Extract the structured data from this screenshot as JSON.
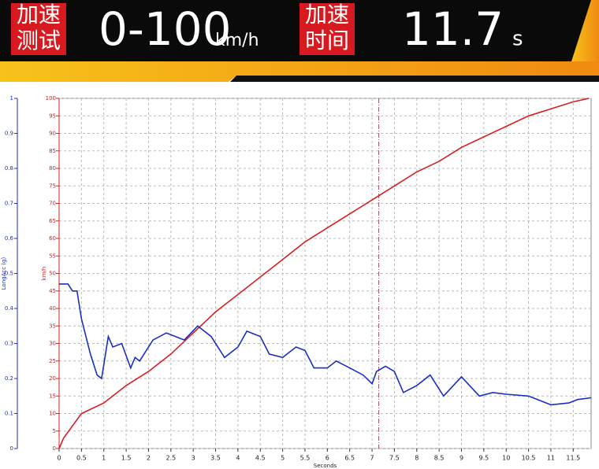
{
  "header": {
    "badge1": [
      "加速",
      "测试"
    ],
    "title": "0-100",
    "unit": "km/h",
    "badge2": [
      "加速",
      "时间"
    ],
    "result": "11.7",
    "result_unit": "s"
  },
  "chart_data": {
    "type": "line",
    "xlabel": "Seconds",
    "ylabel": "km/h",
    "y2label": "LongAcc (g)",
    "xlim": [
      0,
      11.9
    ],
    "xticks": [
      0,
      0.5,
      1,
      1.5,
      2,
      2.5,
      3,
      3.5,
      4,
      4.5,
      5,
      5.5,
      6,
      6.5,
      7,
      7.5,
      8,
      8.5,
      9,
      9.5,
      10,
      10.5,
      11,
      11.5
    ],
    "ylim": [
      0,
      100
    ],
    "yticks": [
      0,
      5,
      10,
      15,
      20,
      25,
      30,
      35,
      40,
      45,
      50,
      55,
      60,
      65,
      70,
      75,
      80,
      85,
      90,
      95,
      100
    ],
    "y2lim": [
      0,
      1
    ],
    "y2ticks": [
      0,
      0.1,
      0.2,
      0.3,
      0.4,
      0.5,
      0.6,
      0.7,
      0.8,
      0.9,
      1
    ],
    "grid": true,
    "cursor_x": 7.15,
    "series": [
      {
        "name": "km/h",
        "color": "#d42020",
        "axis": "y",
        "x": [
          0,
          0.1,
          0.5,
          1,
          1.5,
          2,
          2.5,
          3,
          3.5,
          4,
          4.5,
          5,
          5.5,
          6,
          6.5,
          7,
          7.5,
          8,
          8.5,
          9,
          9.5,
          10,
          10.5,
          11,
          11.5,
          11.85
        ],
        "values": [
          0,
          3,
          10,
          13,
          18,
          22,
          27,
          33,
          39,
          44,
          49,
          54,
          59,
          63,
          67,
          71,
          75,
          79,
          82,
          86,
          89,
          92,
          95,
          97,
          99,
          100
        ]
      },
      {
        "name": "LongAcc (g)",
        "color": "#1a2fc0",
        "axis": "y2",
        "x": [
          0,
          0.2,
          0.3,
          0.4,
          0.5,
          0.7,
          0.85,
          0.95,
          1.1,
          1.2,
          1.4,
          1.6,
          1.7,
          1.8,
          2.1,
          2.4,
          2.6,
          2.8,
          3.1,
          3.4,
          3.7,
          4,
          4.2,
          4.5,
          4.7,
          5,
          5.3,
          5.5,
          5.7,
          6,
          6.2,
          6.5,
          6.8,
          7,
          7.1,
          7.3,
          7.5,
          7.7,
          8,
          8.3,
          8.6,
          9,
          9.4,
          9.7,
          10,
          10.5,
          11,
          11.4,
          11.6,
          11.9
        ],
        "values": [
          0.47,
          0.47,
          0.45,
          0.45,
          0.37,
          0.27,
          0.21,
          0.2,
          0.32,
          0.29,
          0.3,
          0.23,
          0.26,
          0.25,
          0.31,
          0.33,
          0.32,
          0.31,
          0.35,
          0.32,
          0.26,
          0.29,
          0.335,
          0.32,
          0.27,
          0.26,
          0.29,
          0.28,
          0.23,
          0.23,
          0.25,
          0.23,
          0.21,
          0.185,
          0.22,
          0.235,
          0.22,
          0.16,
          0.18,
          0.21,
          0.15,
          0.205,
          0.15,
          0.16,
          0.155,
          0.15,
          0.125,
          0.13,
          0.14,
          0.145
        ]
      }
    ]
  }
}
